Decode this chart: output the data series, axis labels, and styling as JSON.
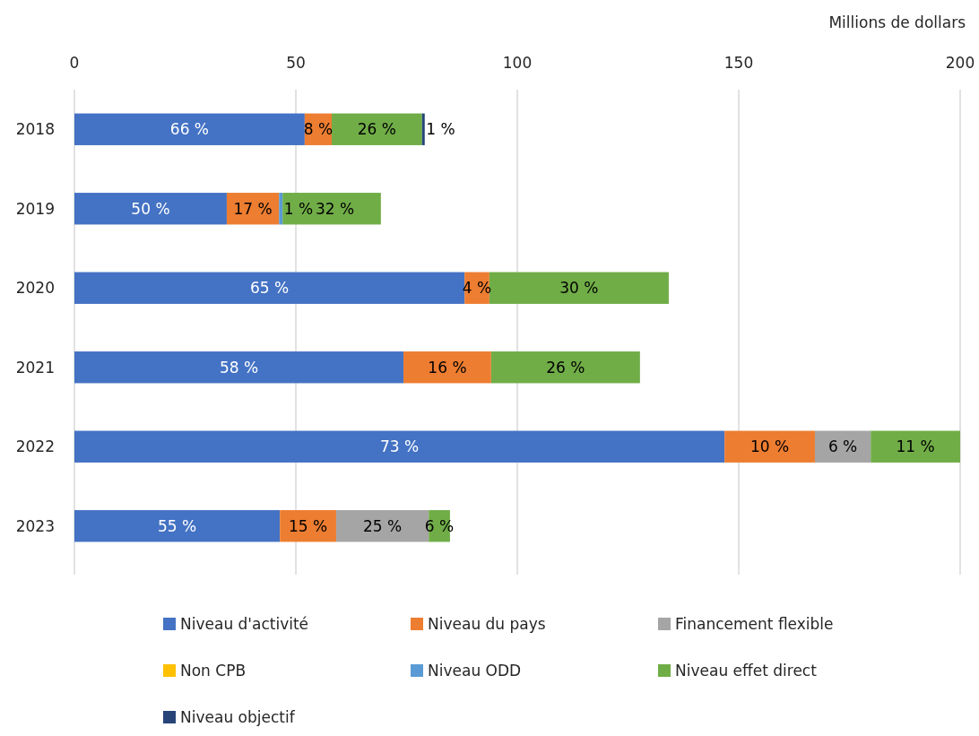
{
  "chart_data": {
    "type": "bar",
    "orientation": "horizontal",
    "stacked": true,
    "xlabel": "Millions de dollars",
    "categories": [
      "2018",
      "2019",
      "2020",
      "2021",
      "2022",
      "2023"
    ],
    "xlim": [
      0,
      200
    ],
    "xticks": [
      0,
      50,
      100,
      150,
      200
    ],
    "grid": "x",
    "legend": "bottom",
    "series": [
      {
        "name": "Niveau d'activité",
        "color": "#4472c4",
        "values": [
          52,
          34.4,
          88.1,
          74.3,
          146.8,
          46.4
        ]
      },
      {
        "name": "Niveau du pays",
        "color": "#ed7d31",
        "values": [
          6.1,
          11.8,
          5.6,
          19.8,
          20.4,
          12.7
        ]
      },
      {
        "name": "Financement flexible",
        "color": "#a5a5a5",
        "values": [
          null,
          null,
          null,
          null,
          12.6,
          20.9
        ]
      },
      {
        "name": "Non CPB",
        "color": "#ffc000",
        "values": [
          null,
          null,
          null,
          null,
          null,
          null
        ]
      },
      {
        "name": "Niveau ODD",
        "color": "#5b9bd5",
        "values": [
          null,
          0.8,
          null,
          null,
          null,
          null
        ]
      },
      {
        "name": "Niveau effet direct",
        "color": "#70ad47",
        "values": [
          20.4,
          22.2,
          40.5,
          33.6,
          20.2,
          4.8
        ]
      },
      {
        "name": "Niveau objectif",
        "color": "#264478",
        "values": [
          0.6,
          null,
          null,
          null,
          null,
          null
        ]
      }
    ],
    "annotations": [
      "66 %",
      "8 %",
      "26 %",
      "1 %",
      "50 %",
      "17 %",
      "1 %",
      "32 %",
      "65 %",
      "4 %",
      "30 %",
      "58 %",
      "16 %",
      "26 %",
      "73 %",
      "10 %",
      "6 %",
      "11 %",
      "55 %",
      "15 %",
      "25 %",
      "6 %"
    ]
  }
}
